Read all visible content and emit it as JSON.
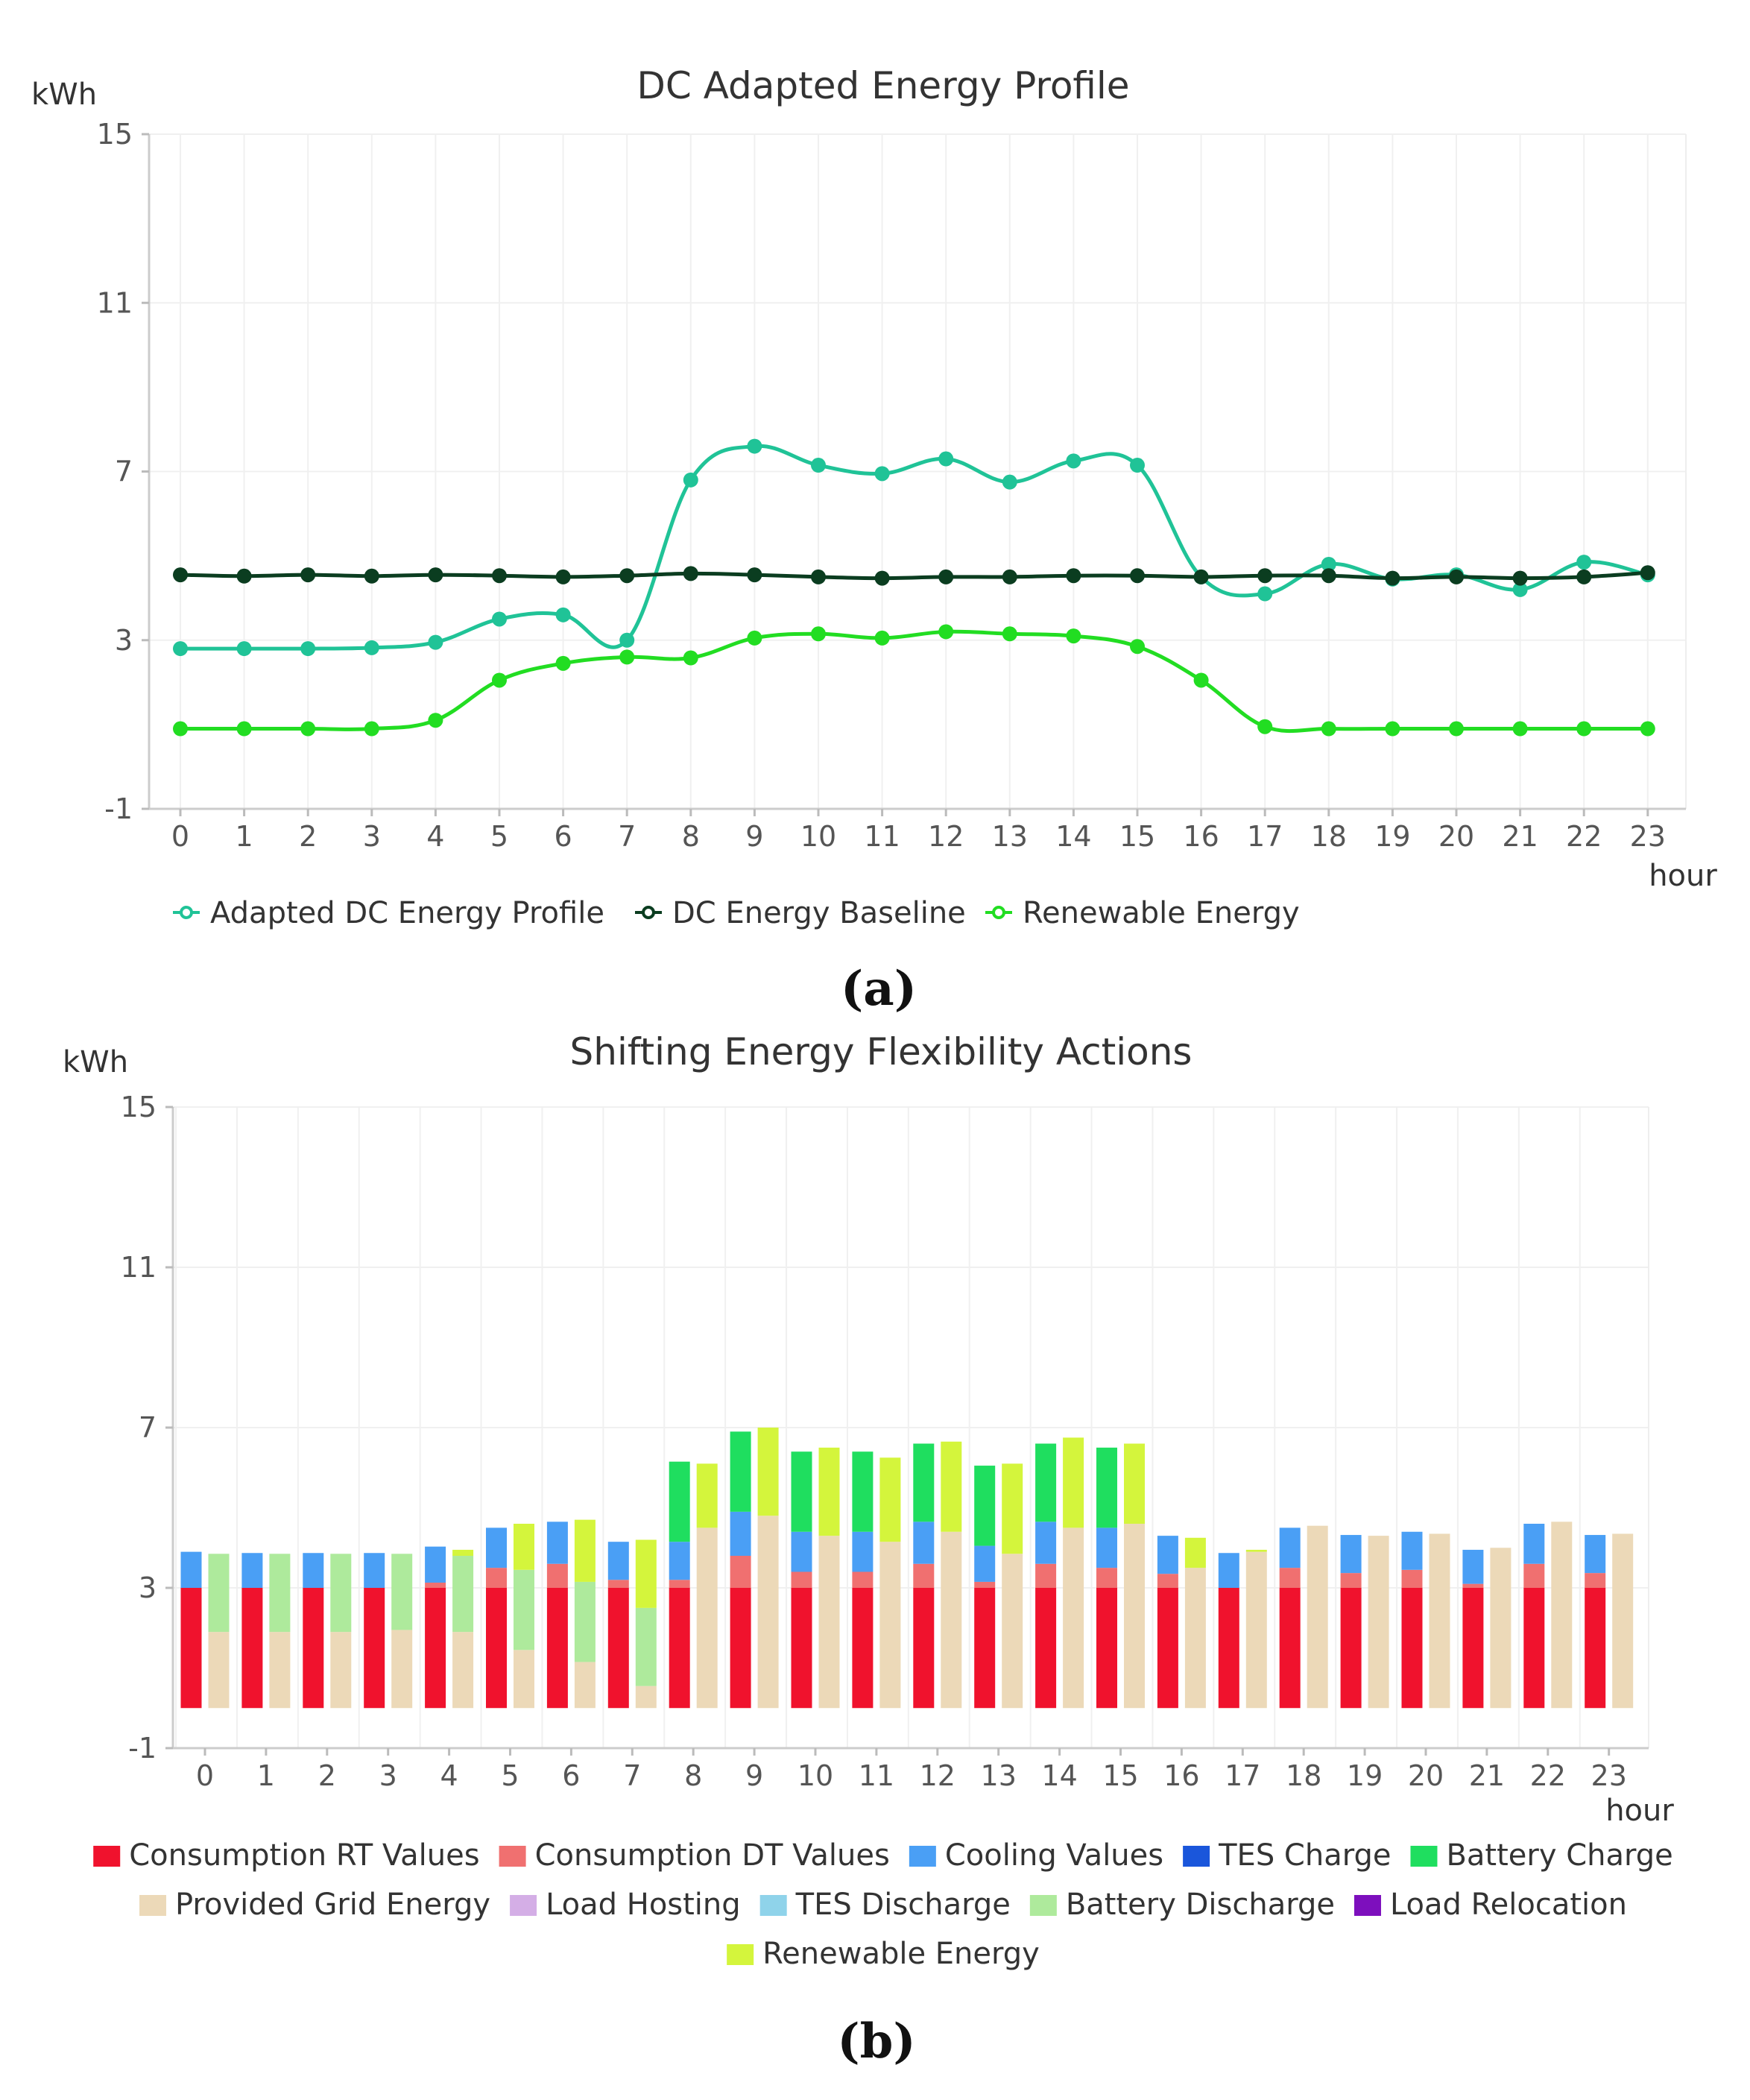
{
  "chart_data": [
    {
      "type": "line",
      "title": "DC Adapted Energy Profile",
      "ylabel": "kWh",
      "xlabel": "hour",
      "ylim": [
        -1,
        15
      ],
      "yticks": [
        "15",
        "11",
        "7",
        "3",
        "-1"
      ],
      "ytick_values": [
        15,
        11,
        7,
        3,
        -1
      ],
      "categories": [
        "0",
        "1",
        "2",
        "3",
        "4",
        "5",
        "6",
        "7",
        "8",
        "9",
        "10",
        "11",
        "12",
        "13",
        "14",
        "15",
        "16",
        "17",
        "18",
        "19",
        "20",
        "21",
        "22",
        "23"
      ],
      "panel_label": "(a)",
      "series": [
        {
          "name": "Adapted DC Energy Profile",
          "color": "#20c397",
          "values": [
            2.8,
            2.8,
            2.8,
            2.82,
            2.95,
            3.5,
            3.6,
            3.0,
            6.8,
            7.6,
            7.15,
            6.95,
            7.3,
            6.75,
            7.25,
            7.15,
            4.5,
            4.1,
            4.8,
            4.45,
            4.55,
            4.2,
            4.85,
            4.55
          ]
        },
        {
          "name": "DC Energy Baseline",
          "color": "#0b3d20",
          "values": [
            4.55,
            4.52,
            4.55,
            4.52,
            4.55,
            4.53,
            4.5,
            4.53,
            4.58,
            4.55,
            4.5,
            4.47,
            4.5,
            4.5,
            4.53,
            4.53,
            4.5,
            4.53,
            4.53,
            4.47,
            4.5,
            4.47,
            4.5,
            4.6
          ]
        },
        {
          "name": "Renewable Energy",
          "color": "#22dd22",
          "values": [
            0.9,
            0.9,
            0.9,
            0.9,
            1.1,
            2.05,
            2.45,
            2.6,
            2.58,
            3.05,
            3.15,
            3.05,
            3.2,
            3.15,
            3.1,
            2.85,
            2.05,
            0.95,
            0.9,
            0.9,
            0.9,
            0.9,
            0.9,
            0.9
          ]
        }
      ]
    },
    {
      "type": "bar",
      "title": "Shifting Energy Flexibility Actions",
      "ylabel": "kWh",
      "xlabel": "hour",
      "ylim": [
        -1,
        15
      ],
      "yticks": [
        "15",
        "11",
        "7",
        "3",
        "-1"
      ],
      "ytick_values": [
        15,
        11,
        7,
        3,
        -1
      ],
      "baseline": 0,
      "categories": [
        "0",
        "1",
        "2",
        "3",
        "4",
        "5",
        "6",
        "7",
        "8",
        "9",
        "10",
        "11",
        "12",
        "13",
        "14",
        "15",
        "16",
        "17",
        "18",
        "19",
        "20",
        "21",
        "22",
        "23"
      ],
      "panel_label": "(b)",
      "legend": [
        {
          "name": "Consumption RT Values",
          "color": "#f0122d"
        },
        {
          "name": "Consumption DT Values",
          "color": "#f07070"
        },
        {
          "name": "Cooling Values",
          "color": "#4a9ff5"
        },
        {
          "name": "TES Charge",
          "color": "#1a56db"
        },
        {
          "name": "Battery Charge",
          "color": "#1fde5f"
        },
        {
          "name": "Provided Grid Energy",
          "color": "#ecd9b8"
        },
        {
          "name": "Load Hosting",
          "color": "#d4aee6"
        },
        {
          "name": "TES Discharge",
          "color": "#8fd3ea"
        },
        {
          "name": "Battery Discharge",
          "color": "#aeea9c"
        },
        {
          "name": "Load Relocation",
          "color": "#7d0fbd"
        },
        {
          "name": "Renewable Energy",
          "color": "#d4f53c"
        }
      ],
      "stack_a": {
        "segments": [
          "Consumption RT Values",
          "Consumption DT Values",
          "Cooling Values",
          "Battery Charge"
        ],
        "values": [
          [
            3.0,
            0,
            0.9,
            0
          ],
          [
            3.0,
            0,
            0.87,
            0
          ],
          [
            3.0,
            0,
            0.87,
            0
          ],
          [
            3.0,
            0,
            0.87,
            0
          ],
          [
            3.0,
            0.13,
            0.9,
            0
          ],
          [
            3.0,
            0.5,
            1.0,
            0
          ],
          [
            3.0,
            0.6,
            1.05,
            0
          ],
          [
            3.0,
            0.2,
            0.95,
            0
          ],
          [
            3.0,
            0.2,
            0.95,
            2.0
          ],
          [
            3.0,
            0.8,
            1.1,
            2.0
          ],
          [
            3.0,
            0.4,
            1.0,
            2.0
          ],
          [
            3.0,
            0.4,
            1.0,
            2.0
          ],
          [
            3.0,
            0.6,
            1.05,
            1.95
          ],
          [
            3.0,
            0.15,
            0.9,
            2.0
          ],
          [
            3.0,
            0.6,
            1.05,
            1.95
          ],
          [
            3.0,
            0.5,
            1.0,
            2.0
          ],
          [
            3.0,
            0.35,
            0.95,
            0
          ],
          [
            3.0,
            0,
            0.87,
            0
          ],
          [
            3.0,
            0.5,
            1.0,
            0
          ],
          [
            3.0,
            0.37,
            0.95,
            0
          ],
          [
            3.0,
            0.45,
            0.95,
            0
          ],
          [
            3.0,
            0.1,
            0.85,
            0
          ],
          [
            3.0,
            0.6,
            1.0,
            0
          ],
          [
            3.0,
            0.37,
            0.95,
            0
          ]
        ]
      },
      "stack_b": {
        "segments": [
          "Provided Grid Energy",
          "Battery Discharge",
          "Renewable Energy"
        ],
        "values": [
          [
            1.9,
            1.95,
            0
          ],
          [
            1.9,
            1.95,
            0
          ],
          [
            1.9,
            1.95,
            0
          ],
          [
            1.95,
            1.9,
            0
          ],
          [
            1.9,
            1.9,
            0.15
          ],
          [
            1.45,
            2.0,
            1.15
          ],
          [
            1.15,
            2.0,
            1.55
          ],
          [
            0.55,
            1.95,
            1.7
          ],
          [
            4.5,
            0,
            1.6
          ],
          [
            4.8,
            0,
            2.2
          ],
          [
            4.3,
            0,
            2.2
          ],
          [
            4.15,
            0,
            2.1
          ],
          [
            4.4,
            0,
            2.25
          ],
          [
            3.85,
            0,
            2.25
          ],
          [
            4.5,
            0,
            2.25
          ],
          [
            4.6,
            0,
            2.0
          ],
          [
            3.5,
            0,
            0.75
          ],
          [
            3.9,
            0,
            0.05
          ],
          [
            4.55,
            0,
            0
          ],
          [
            4.3,
            0,
            0
          ],
          [
            4.35,
            0,
            0
          ],
          [
            4.0,
            0,
            0
          ],
          [
            4.65,
            0,
            0
          ],
          [
            4.35,
            0,
            0
          ]
        ]
      }
    }
  ]
}
